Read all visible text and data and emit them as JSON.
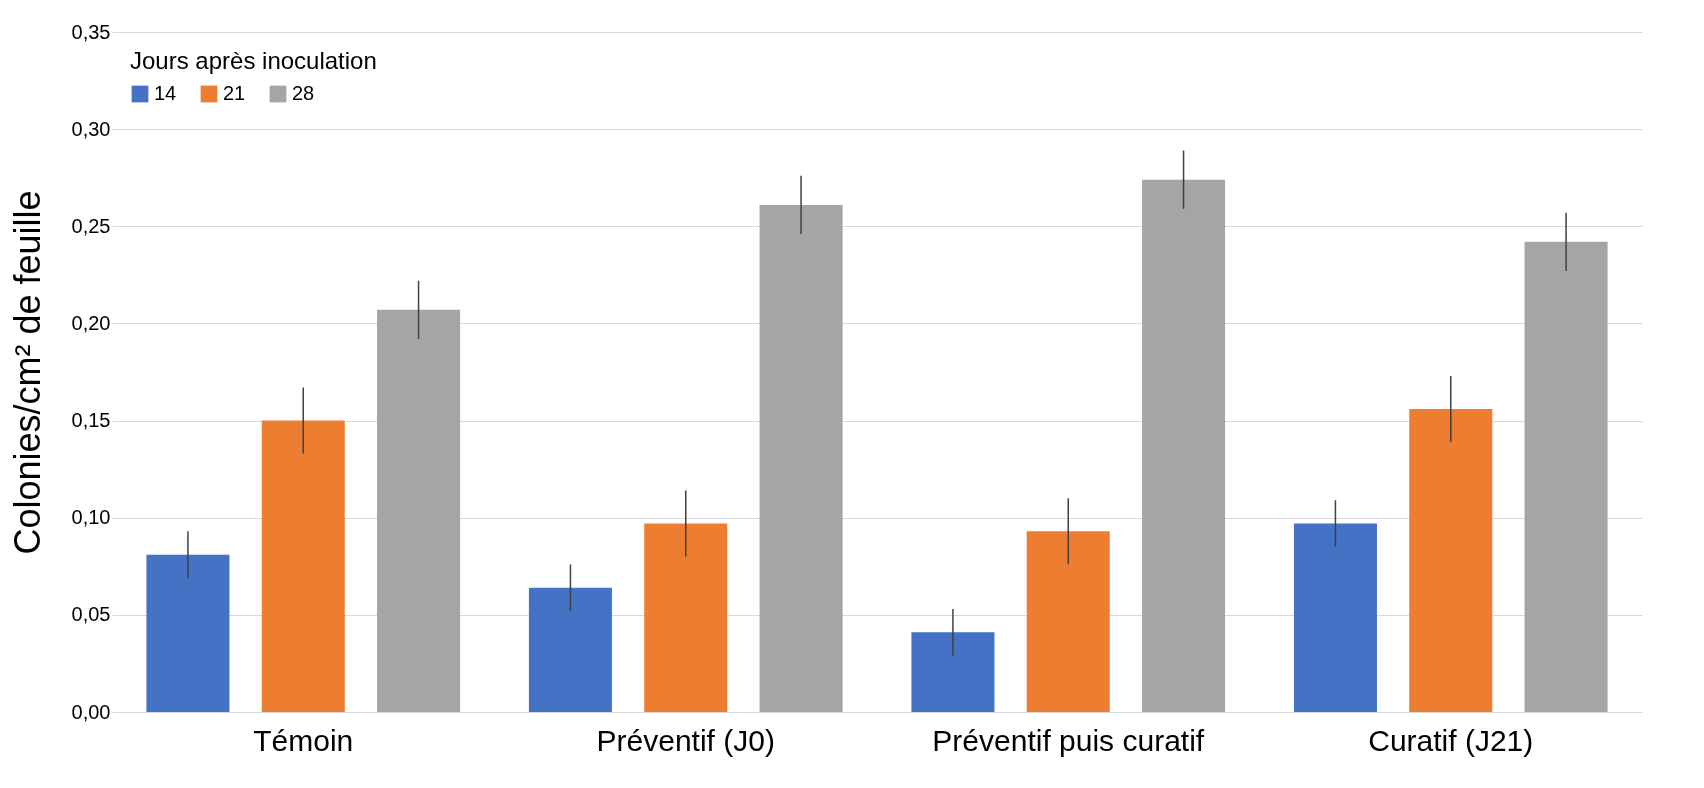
{
  "chart_data": {
    "type": "bar",
    "categories": [
      "Témoin",
      "Préventif (J0)",
      "Préventif puis curatif",
      "Curatif (J21)"
    ],
    "ylabel": "Colonies/cm² de feuille",
    "legend_title": "Jours après inoculation",
    "series": [
      {
        "name": "14",
        "color": "#4472c4",
        "values": [
          0.081,
          0.064,
          0.041,
          0.097
        ],
        "errors": [
          0.012,
          0.012,
          0.012,
          0.012
        ]
      },
      {
        "name": "21",
        "color": "#ed7d31",
        "values": [
          0.15,
          0.097,
          0.093,
          0.156
        ],
        "errors": [
          0.017,
          0.017,
          0.017,
          0.017
        ]
      },
      {
        "name": "28",
        "color": "#a5a5a5",
        "values": [
          0.207,
          0.261,
          0.274,
          0.242
        ],
        "errors": [
          0.015,
          0.015,
          0.015,
          0.015
        ]
      }
    ],
    "ylim": [
      0,
      0.35
    ],
    "yticks": [
      {
        "value": 0,
        "label": "0,00"
      },
      {
        "value": 0.05,
        "label": "0,05"
      },
      {
        "value": 0.1,
        "label": "0,10"
      },
      {
        "value": 0.15,
        "label": "0,15"
      },
      {
        "value": 0.2,
        "label": "0,20"
      },
      {
        "value": 0.25,
        "label": "0,25"
      },
      {
        "value": 0.3,
        "label": "0,30"
      },
      {
        "value": 0.35,
        "label": "0,35"
      }
    ],
    "grid": "y",
    "legend": "top left"
  }
}
